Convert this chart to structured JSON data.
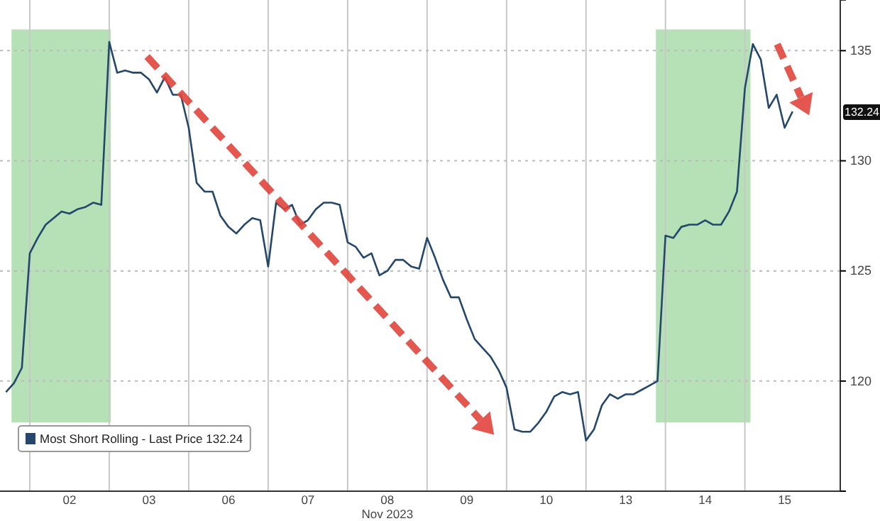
{
  "chart_data": {
    "type": "line",
    "xlabel": "Nov 2023",
    "categories": [
      null,
      null,
      null,
      null,
      null,
      null,
      null,
      null,
      "02",
      null,
      null,
      null,
      null,
      null,
      null,
      null,
      null,
      null,
      "03",
      null,
      null,
      null,
      null,
      null,
      null,
      null,
      null,
      null,
      "06",
      null,
      null,
      null,
      null,
      null,
      null,
      null,
      null,
      null,
      "07",
      null,
      null,
      null,
      null,
      null,
      null,
      null,
      null,
      null,
      "08",
      null,
      null,
      null,
      null,
      null,
      null,
      null,
      null,
      null,
      "09",
      null,
      null,
      null,
      null,
      null,
      null,
      null,
      null,
      null,
      "10",
      null,
      null,
      null,
      null,
      null,
      null,
      null,
      null,
      null,
      "13",
      null,
      null,
      null,
      null,
      null,
      null,
      null,
      null,
      null,
      "14",
      null,
      null,
      null,
      null,
      null,
      null,
      null,
      null,
      null,
      "15",
      null
    ],
    "series": [
      {
        "name": "Most Short Rolling - Last Price 132.24",
        "color": "#24476b",
        "values": [
          119.5,
          119.9,
          120.6,
          125.8,
          126.5,
          127.1,
          127.4,
          127.7,
          127.6,
          127.8,
          127.9,
          128.1,
          128.0,
          135.4,
          134.0,
          134.1,
          134.0,
          134.0,
          133.7,
          133.1,
          133.8,
          133.0,
          133.0,
          131.5,
          129.0,
          128.6,
          128.6,
          127.5,
          127.0,
          126.7,
          127.1,
          127.4,
          127.3,
          125.2,
          128.1,
          127.8,
          128.0,
          127.1,
          127.3,
          127.8,
          128.1,
          128.1,
          128.0,
          126.3,
          126.1,
          125.6,
          125.8,
          124.8,
          125.0,
          125.5,
          125.5,
          125.2,
          125.1,
          126.5,
          125.6,
          124.6,
          123.8,
          123.8,
          122.8,
          121.9,
          121.5,
          121.1,
          120.5,
          119.7,
          117.8,
          117.7,
          117.7,
          118.1,
          118.6,
          119.3,
          119.5,
          119.4,
          119.5,
          117.3,
          117.8,
          118.9,
          119.4,
          119.2,
          119.4,
          119.4,
          119.6,
          119.8,
          120.0,
          126.6,
          126.5,
          127.0,
          127.1,
          127.1,
          127.3,
          127.1,
          127.1,
          127.7,
          128.6,
          133.3,
          135.3,
          134.6,
          132.4,
          133.0,
          131.5,
          132.24
        ]
      }
    ],
    "ylim": [
      115,
      137.3
    ],
    "yticks": [
      {
        "value": 115,
        "label": null
      },
      120,
      125,
      130,
      135
    ],
    "grid": true,
    "legend": "bottom left",
    "annotations": [
      "132.24"
    ]
  }
}
